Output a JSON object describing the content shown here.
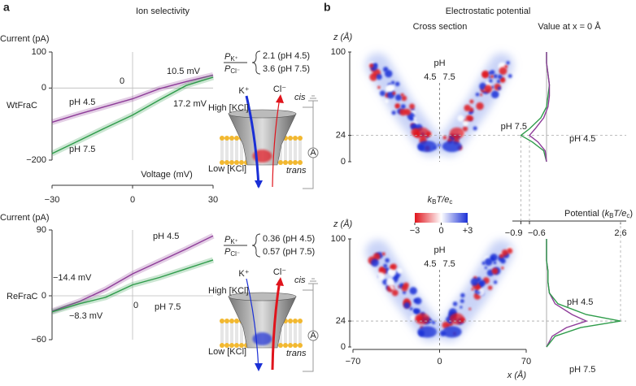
{
  "panel_labels": [
    "a",
    "b"
  ],
  "titles": [
    "Ion selectivity",
    "Electrostatic potential"
  ],
  "column_titles": [
    "Cross section",
    "Value at x = 0 Å"
  ],
  "chart_data": [
    {
      "type": "line",
      "row_label": "WtFraC",
      "ylabel": "Current (pA)",
      "xlabel": "Voltage (mV)",
      "x": [
        -30,
        -20,
        -10,
        0,
        10,
        20,
        30
      ],
      "xlim": [
        -30,
        30
      ],
      "xticks": [
        {
          "value": -30,
          "label": "−30"
        },
        0,
        30
      ],
      "ylim": [
        -200,
        100
      ],
      "yticks": [
        {
          "value": -200,
          "label": "−200"
        },
        0,
        100
      ],
      "series": [
        {
          "name": "pH 4.5",
          "color": "#8e3c99",
          "values": [
            -95,
            -72,
            -51,
            -30,
            -2,
            18,
            36
          ]
        },
        {
          "name": "pH 7.5",
          "color": "#2e9c4a",
          "values": [
            -182,
            -146,
            -110,
            -75,
            -33,
            7,
            30
          ]
        }
      ],
      "annotations": [
        {
          "text": "10.5 mV",
          "color": "#222222"
        },
        {
          "text": "17.2 mV",
          "color": "#222222"
        },
        {
          "text": "0",
          "color": "#8e3c99"
        }
      ]
    },
    {
      "type": "line",
      "row_label": "ReFraC",
      "ylabel": "Current (pA)",
      "x": [
        -30,
        -20,
        -10,
        0,
        10,
        20,
        30
      ],
      "xlim": [
        -30,
        30
      ],
      "ylim": [
        -60,
        90
      ],
      "yticks": [
        {
          "value": -60,
          "label": "−60"
        },
        0,
        90
      ],
      "series": [
        {
          "name": "pH 4.5",
          "color": "#8e3c99",
          "values": [
            -21,
            -8,
            9,
            30,
            47,
            64,
            82
          ]
        },
        {
          "name": "pH 7.5",
          "color": "#2e9c4a",
          "values": [
            -22,
            -11,
            -2,
            15,
            25,
            37,
            49
          ]
        }
      ],
      "annotations": [
        {
          "text": "−14.4 mV",
          "color": "#222222"
        },
        {
          "text": "−8.3 mV",
          "color": "#1a2fc7"
        },
        {
          "text": "0",
          "color": "#8e3c99"
        }
      ]
    },
    {
      "type": "heatmap",
      "ylabel": "z (Å)",
      "ylim": [
        0,
        100
      ],
      "yticks": [
        0,
        24,
        100
      ],
      "xlim": [
        -70,
        70
      ],
      "ph_label": "pH",
      "ph_values": [
        "4.5",
        "7.5"
      ],
      "colorbar": {
        "label_parts": [
          "k",
          "B",
          "T/",
          "e",
          "c"
        ],
        "lim": [
          -3,
          3
        ],
        "ticks": [
          {
            "value": -3,
            "label": "−3"
          },
          0,
          {
            "value": 3,
            "label": "+3"
          }
        ]
      }
    },
    {
      "type": "heatmap",
      "ylabel": "z (Å)",
      "xlabel": "x (Å)",
      "ylim": [
        0,
        100
      ],
      "yticks": [
        0,
        24,
        100
      ],
      "xlim": [
        -70,
        70
      ],
      "xticks": [
        {
          "value": -70,
          "label": "−70"
        },
        0,
        70
      ],
      "ph_label": "pH",
      "ph_values": [
        "4.5",
        "7.5"
      ]
    },
    {
      "type": "profile",
      "y": [
        0,
        10,
        18,
        24,
        30,
        40,
        50,
        60,
        70,
        80,
        90,
        100
      ],
      "ylim": [
        0,
        100
      ],
      "xlim": [
        -1.2,
        2.8
      ],
      "xticks": [
        {
          "value": -0.9,
          "label": "−0.9"
        },
        {
          "value": -0.6,
          "label": "−0.6"
        },
        2.6
      ],
      "xlabel_parts": [
        "Potential (",
        "k",
        "B",
        "T/",
        "e",
        "c",
        ")"
      ],
      "series": [
        {
          "name": "pH 7.5",
          "color": "#2e9c4a",
          "values": [
            0,
            -0.1,
            -0.5,
            -0.9,
            -0.6,
            -0.2,
            0,
            0.05,
            0.1,
            0.05,
            0,
            0
          ]
        },
        {
          "name": "pH 4.5",
          "color": "#8e3c99",
          "values": [
            0,
            -0.05,
            -0.3,
            -0.6,
            -0.4,
            -0.1,
            0.05,
            0.1,
            0.1,
            0.05,
            0,
            0
          ]
        }
      ]
    },
    {
      "type": "profile",
      "y": [
        0,
        10,
        18,
        24,
        30,
        40,
        50,
        60,
        70,
        80,
        90,
        100
      ],
      "ylim": [
        0,
        100
      ],
      "xlim": [
        -1.2,
        2.8
      ],
      "series": [
        {
          "name": "pH 4.5",
          "color": "#8e3c99",
          "values": [
            0,
            0.2,
            0.7,
            1.4,
            0.9,
            0.3,
            0.1,
            0.05,
            0.05,
            0,
            0,
            0
          ]
        },
        {
          "name": "pH 7.5",
          "color": "#2e9c4a",
          "values": [
            0,
            0.3,
            1.2,
            2.6,
            1.4,
            0.4,
            0.1,
            0.05,
            0.05,
            0,
            0,
            0
          ]
        }
      ]
    }
  ],
  "schematics": [
    {
      "ratio": {
        "symbol": "P",
        "num_sub": "K⁺",
        "den_sub": "Cl⁻"
      },
      "values": [
        "2.1 (pH 4.5)",
        "3.6 (pH 7.5)"
      ],
      "cation": "K⁺",
      "anion": "Cl⁻",
      "high": "High [KCl]",
      "low": "Low [KCl]",
      "cis": "cis",
      "trans": "trans",
      "ammeter": "A"
    },
    {
      "ratio": {
        "symbol": "P",
        "num_sub": "K⁺",
        "den_sub": "Cl⁻"
      },
      "values": [
        "0.36 (pH 4.5)",
        "0.57 (pH 7.5)"
      ],
      "cation": "K⁺",
      "anion": "Cl⁻",
      "high": "High [KCl]",
      "low": "Low [KCl]",
      "cis": "cis",
      "trans": "trans",
      "ammeter": "A"
    }
  ]
}
